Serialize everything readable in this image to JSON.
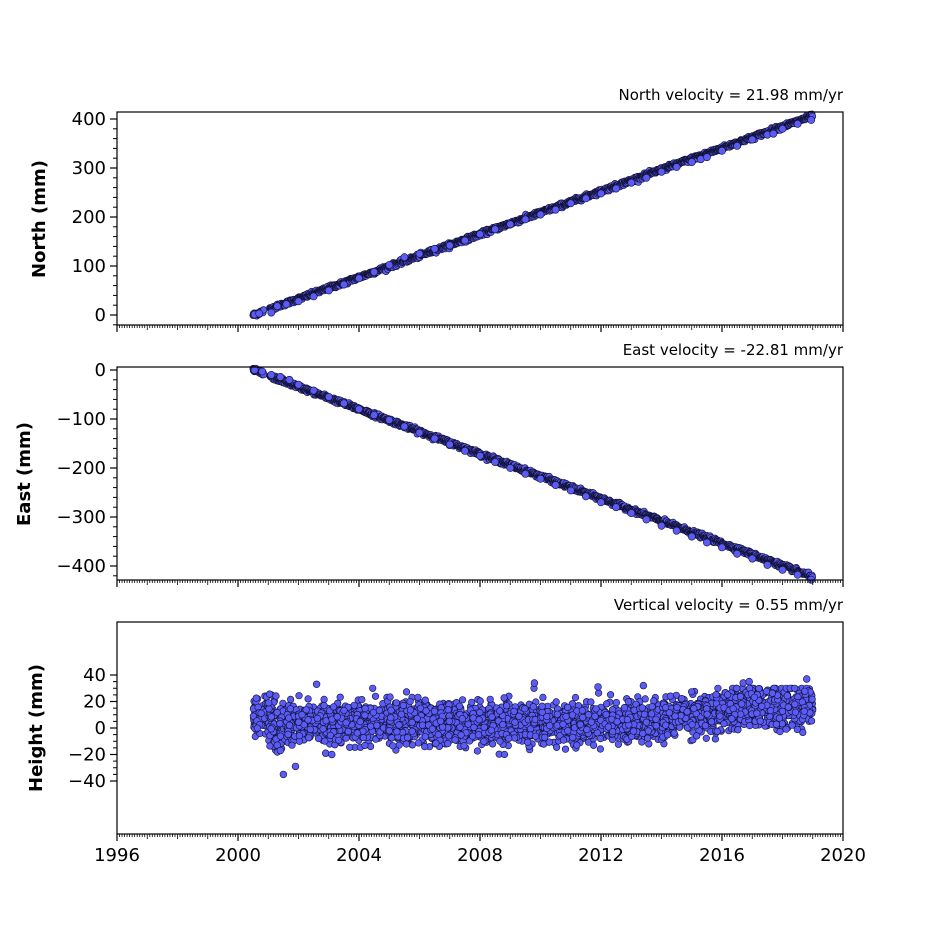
{
  "chart_data": [
    {
      "type": "scatter",
      "title": "North velocity = 21.98 mm/yr",
      "ylabel": "North (mm)",
      "xlabel": "",
      "xlim": [
        1996,
        2020
      ],
      "ylim": [
        -20,
        415
      ],
      "yticks": [
        "0",
        "100",
        "200",
        "300",
        "400"
      ],
      "xticks": [],
      "grid": false,
      "marker_color": "#5b5bf5",
      "marker_edge": "#111133",
      "series": [
        {
          "trend": {
            "x0": 2000.5,
            "y0": 0,
            "rate_mm_per_yr": 21.98,
            "x1": 2019.0
          },
          "sample_points": [
            [
              2000.55,
              1
            ],
            [
              2000.7,
              3
            ],
            [
              2001.1,
              5
            ],
            [
              2001.3,
              18
            ],
            [
              2001.6,
              22
            ],
            [
              2002.0,
              28
            ],
            [
              2002.5,
              38
            ],
            [
              2003.0,
              50
            ],
            [
              2003.5,
              62
            ],
            [
              2004.0,
              75
            ],
            [
              2004.5,
              88
            ],
            [
              2005.0,
              102
            ],
            [
              2005.5,
              118
            ],
            [
              2006.0,
              125
            ],
            [
              2006.5,
              135
            ],
            [
              2007.0,
              142
            ],
            [
              2007.5,
              152
            ],
            [
              2008.0,
              165
            ],
            [
              2008.5,
              175
            ],
            [
              2009.0,
              185
            ],
            [
              2009.5,
              195
            ],
            [
              2010.0,
              205
            ],
            [
              2010.5,
              215
            ],
            [
              2011.0,
              228
            ],
            [
              2011.5,
              238
            ],
            [
              2012.0,
              248
            ],
            [
              2012.5,
              258
            ],
            [
              2013.0,
              270
            ],
            [
              2013.5,
              280
            ],
            [
              2014.0,
              292
            ],
            [
              2014.5,
              302
            ],
            [
              2015.0,
              312
            ],
            [
              2015.3,
              318
            ],
            [
              2015.5,
              322
            ],
            [
              2016.0,
              335
            ],
            [
              2016.5,
              345
            ],
            [
              2017.0,
              358
            ],
            [
              2017.5,
              368
            ],
            [
              2017.7,
              370
            ],
            [
              2018.0,
              380
            ],
            [
              2018.5,
              390
            ],
            [
              2018.95,
              398
            ]
          ]
        }
      ]
    },
    {
      "type": "scatter",
      "title": "East velocity = -22.81 mm/yr",
      "ylabel": "East (mm)",
      "xlabel": "",
      "xlim": [
        1996,
        2020
      ],
      "ylim": [
        -430,
        5
      ],
      "yticks": [
        "0",
        "−100",
        "−200",
        "−300",
        "−400"
      ],
      "xticks": [],
      "grid": false,
      "marker_color": "#5b5bf5",
      "marker_edge": "#111133",
      "series": [
        {
          "trend": {
            "x0": 2000.5,
            "y0": 0,
            "rate_mm_per_yr": -22.81,
            "x1": 2019.0
          },
          "sample_points": [
            [
              2000.55,
              0
            ],
            [
              2000.8,
              -3
            ],
            [
              2001.1,
              -10
            ],
            [
              2001.4,
              -14
            ],
            [
              2001.7,
              -20
            ],
            [
              2002.0,
              -30
            ],
            [
              2002.5,
              -42
            ],
            [
              2003.0,
              -55
            ],
            [
              2003.5,
              -68
            ],
            [
              2004.0,
              -80
            ],
            [
              2004.5,
              -92
            ],
            [
              2005.0,
              -102
            ],
            [
              2005.5,
              -115
            ],
            [
              2006.0,
              -128
            ],
            [
              2006.5,
              -140
            ],
            [
              2007.0,
              -152
            ],
            [
              2007.5,
              -165
            ],
            [
              2008.0,
              -175
            ],
            [
              2008.5,
              -188
            ],
            [
              2009.0,
              -200
            ],
            [
              2009.5,
              -212
            ],
            [
              2010.0,
              -222
            ],
            [
              2010.5,
              -235
            ],
            [
              2011.0,
              -246
            ],
            [
              2011.5,
              -258
            ],
            [
              2012.0,
              -270
            ],
            [
              2012.5,
              -280
            ],
            [
              2013.0,
              -292
            ],
            [
              2013.5,
              -305
            ],
            [
              2014.0,
              -318
            ],
            [
              2014.5,
              -328
            ],
            [
              2015.0,
              -340
            ],
            [
              2015.5,
              -352
            ],
            [
              2016.0,
              -362
            ],
            [
              2016.5,
              -375
            ],
            [
              2017.0,
              -385
            ],
            [
              2017.5,
              -398
            ],
            [
              2018.0,
              -408
            ],
            [
              2018.5,
              -418
            ],
            [
              2018.95,
              -428
            ]
          ]
        }
      ]
    },
    {
      "type": "scatter",
      "title": "Vertical velocity = 0.55 mm/yr",
      "ylabel": "Height (mm)",
      "xlabel": "",
      "xlim": [
        1996,
        2020
      ],
      "ylim": [
        -40,
        40
      ],
      "yticks": [
        "40",
        "20",
        "0",
        "−20",
        "−40"
      ],
      "xticks": [
        "1996",
        "2000",
        "2004",
        "2008",
        "2012",
        "2016",
        "2020"
      ],
      "grid": false,
      "marker_color": "#5b5bf5",
      "marker_edge": "#111133",
      "series": [
        {
          "band": [
            {
              "from": 2000.5,
              "to": 2001.0,
              "low": -5,
              "high": 22
            },
            {
              "from": 2001.0,
              "to": 2001.6,
              "low": -18,
              "high": 25
            },
            {
              "from": 2001.6,
              "to": 2005.0,
              "low": -10,
              "high": 18
            },
            {
              "from": 2005.0,
              "to": 2010.0,
              "low": -12,
              "high": 20
            },
            {
              "from": 2010.0,
              "to": 2014.0,
              "low": -10,
              "high": 18
            },
            {
              "from": 2014.0,
              "to": 2015.8,
              "low": -5,
              "high": 22
            },
            {
              "from": 2015.8,
              "to": 2019.0,
              "low": 0,
              "high": 32
            }
          ],
          "outliers": [
            [
              2001.5,
              -35
            ],
            [
              2001.9,
              -29
            ],
            [
              2002.6,
              33
            ],
            [
              2002.9,
              -19
            ],
            [
              2003.1,
              -20
            ],
            [
              2009.8,
              34
            ],
            [
              2011.9,
              31
            ],
            [
              2013.4,
              32
            ],
            [
              2018.8,
              37
            ],
            [
              2001.3,
              -13
            ],
            [
              2001.4,
              -17
            ],
            [
              2016.7,
              34
            ],
            [
              2016.9,
              35
            ]
          ]
        }
      ]
    }
  ]
}
